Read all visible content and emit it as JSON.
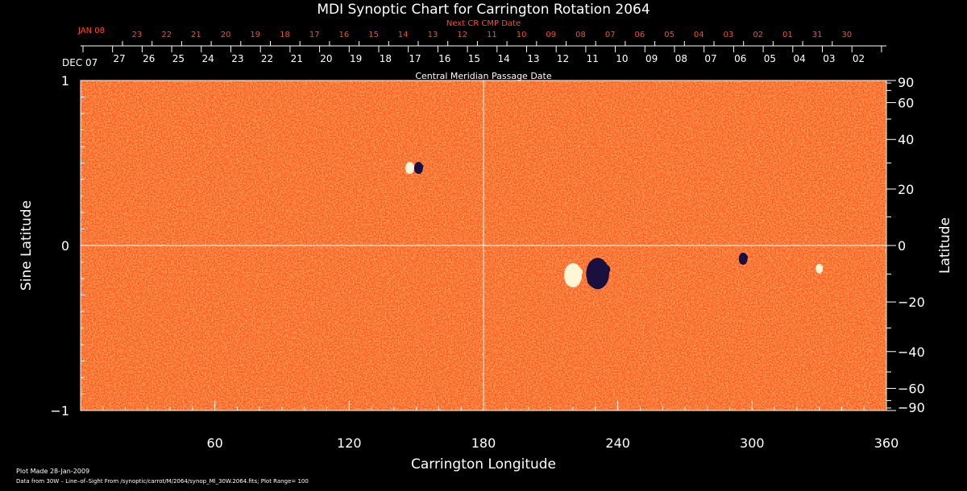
{
  "chart_data": {
    "type": "heatmap",
    "title": "MDI Synoptic Chart for Carrington Rotation 2064",
    "xlabel": "Carrington Longitude",
    "ylabel_left": "Sine Latitude",
    "ylabel_right": "Latitude",
    "xlim": [
      0,
      360
    ],
    "ylim": [
      -1,
      1
    ],
    "x_ticks": [
      60,
      120,
      180,
      240,
      300,
      360
    ],
    "y_ticks_left": [
      -1,
      0,
      1
    ],
    "y_ticks_right": [
      -90,
      -60,
      -40,
      -20,
      0,
      20,
      40,
      60,
      90
    ],
    "y_tick_labels_left": [
      "−1",
      "0",
      "1"
    ],
    "y_tick_labels_right": [
      "−90",
      "−60",
      "−40",
      "−20",
      "0",
      "20",
      "40",
      "60",
      "90"
    ],
    "crosshair": {
      "x": 180,
      "y": 0
    },
    "top_axis_dates": {
      "label": "Central Meridian Passage Date",
      "start_label": "DEC 07",
      "days": [
        "27",
        "26",
        "25",
        "24",
        "23",
        "22",
        "21",
        "20",
        "19",
        "18",
        "17",
        "16",
        "15",
        "14",
        "13",
        "12",
        "11",
        "10",
        "09",
        "08",
        "07",
        "06",
        "05",
        "04",
        "03",
        "02"
      ]
    },
    "next_cr_dates": {
      "label": "Next CR CMP Date",
      "start_label": "JAN 08",
      "days": [
        "23",
        "22",
        "21",
        "20",
        "19",
        "18",
        "17",
        "16",
        "15",
        "14",
        "13",
        "12",
        "11",
        "10",
        "09",
        "08",
        "07",
        "06",
        "05",
        "04",
        "03",
        "02",
        "01",
        "31",
        "30"
      ]
    },
    "features": [
      {
        "lon": 220,
        "sinlat": -0.18,
        "polarity": "positive",
        "size": 1.0
      },
      {
        "lon": 231,
        "sinlat": -0.17,
        "polarity": "negative",
        "size": 1.3
      },
      {
        "lon": 147,
        "sinlat": 0.47,
        "polarity": "positive",
        "size": 0.5
      },
      {
        "lon": 151,
        "sinlat": 0.47,
        "polarity": "negative",
        "size": 0.5
      },
      {
        "lon": 296,
        "sinlat": -0.08,
        "polarity": "negative",
        "size": 0.5
      },
      {
        "lon": 330,
        "sinlat": -0.14,
        "polarity": "positive",
        "size": 0.4
      }
    ],
    "colors": {
      "background": "#000000",
      "field_base": "#ff5a1a",
      "positive": "#fff6d8",
      "negative": "#1a1040",
      "axis": "#ffffff",
      "next_cr": "#ff4a2a"
    }
  },
  "footer": {
    "plot_made": "Plot Made 28-Jan-2009",
    "data_info": "Data from 30W – Line–of–Sight From /synoptic/carrot/M/2064/synop_Ml_30W.2064.fits; Plot Range=  100"
  }
}
